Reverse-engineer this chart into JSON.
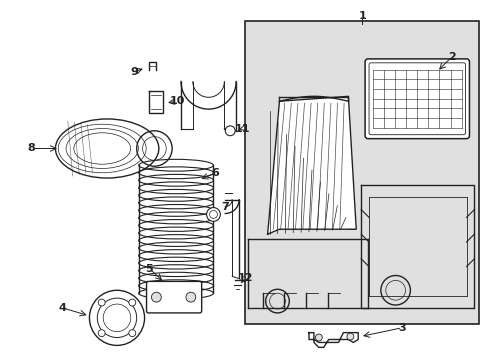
{
  "background_color": "#ffffff",
  "line_color": "#222222",
  "box_bg": "#e0e0e0",
  "fig_width": 4.89,
  "fig_height": 3.6,
  "dpi": 100
}
